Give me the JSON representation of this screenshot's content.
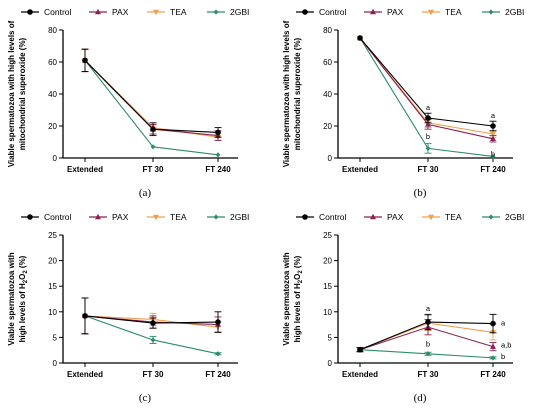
{
  "colors": {
    "Control": "#000000",
    "PAX": "#8b2252",
    "TEA": "#f0a050",
    "2GBI": "#2e8b6e"
  },
  "chart_data": [
    {
      "type": "line",
      "panel": "(a)",
      "ylabel_lines": [
        "Viable spermatozoa with high levels of",
        "mitochondrial superoxide (%)"
      ],
      "categories": [
        "Extended",
        "FT 30",
        "FT 240"
      ],
      "ylim": [
        0,
        80
      ],
      "yticks": [
        "0",
        "20",
        "40",
        "60",
        "80"
      ],
      "series": [
        {
          "name": "Control",
          "values": [
            61,
            18,
            16
          ],
          "err": [
            7,
            4,
            3
          ]
        },
        {
          "name": "PAX",
          "values": [
            61,
            18,
            14
          ],
          "err": [
            7,
            3,
            3
          ]
        },
        {
          "name": "TEA",
          "values": [
            61,
            19,
            13
          ],
          "err": [
            7,
            2,
            2
          ]
        },
        {
          "name": "2GBI",
          "values": [
            61,
            7,
            2
          ],
          "err": [
            7,
            0,
            0
          ]
        }
      ],
      "annotations": []
    },
    {
      "type": "line",
      "panel": "(b)",
      "ylabel_lines": [
        "Viable spermatozoa with high levels of",
        "mitochondrial superoxide (%)"
      ],
      "categories": [
        "Extended",
        "FT 30",
        "FT 240"
      ],
      "ylim": [
        0,
        80
      ],
      "yticks": [
        "0",
        "20",
        "40",
        "60",
        "80"
      ],
      "series": [
        {
          "name": "Control",
          "values": [
            75,
            25,
            20
          ],
          "err": [
            0,
            3,
            3
          ]
        },
        {
          "name": "PAX",
          "values": [
            75,
            21,
            12
          ],
          "err": [
            0,
            3,
            2
          ]
        },
        {
          "name": "TEA",
          "values": [
            75,
            22,
            15
          ],
          "err": [
            0,
            3,
            2
          ]
        },
        {
          "name": "2GBI",
          "values": [
            75,
            6,
            1
          ],
          "err": [
            0,
            3,
            0
          ]
        }
      ],
      "annotations": [
        {
          "text": "a",
          "cat": 1,
          "y": 30
        },
        {
          "text": "b",
          "cat": 1,
          "y": 12
        },
        {
          "text": "a",
          "cat": 2,
          "y": 25
        },
        {
          "text": "b",
          "cat": 2,
          "y": 1
        }
      ]
    },
    {
      "type": "line",
      "panel": "(c)",
      "ylabel_lines": [
        "Viable spermatozoa with",
        "high levels of H2O2 (%)"
      ],
      "categories": [
        "Extended",
        "FT 30",
        "FT 240"
      ],
      "ylim": [
        0,
        25
      ],
      "yticks": [
        "0",
        "5",
        "10",
        "15",
        "20",
        "25"
      ],
      "series": [
        {
          "name": "Control",
          "values": [
            9.2,
            7.8,
            8.0
          ],
          "err": [
            3.5,
            1.0,
            2.0
          ]
        },
        {
          "name": "PAX",
          "values": [
            9.2,
            8.0,
            7.5
          ],
          "err": [
            3.5,
            1.2,
            1.5
          ]
        },
        {
          "name": "TEA",
          "values": [
            9.2,
            8.5,
            7.0
          ],
          "err": [
            3.5,
            1.2,
            1.0
          ]
        },
        {
          "name": "2GBI",
          "values": [
            9.2,
            4.5,
            1.8
          ],
          "err": [
            3.5,
            0.7,
            0.2
          ]
        }
      ],
      "annotations": []
    },
    {
      "type": "line",
      "panel": "(d)",
      "ylabel_lines": [
        "Viable spermatozoa with",
        "high levels of H2O2 (%)"
      ],
      "categories": [
        "Extended",
        "FT 30",
        "FT 240"
      ],
      "ylim": [
        0,
        25
      ],
      "yticks": [
        "0",
        "5",
        "10",
        "15",
        "20",
        "25"
      ],
      "series": [
        {
          "name": "Control",
          "values": [
            2.6,
            8.0,
            7.7
          ],
          "err": [
            0.4,
            1.5,
            1.8
          ]
        },
        {
          "name": "PAX",
          "values": [
            2.6,
            7.0,
            3.2
          ],
          "err": [
            0.4,
            1.5,
            0.8
          ]
        },
        {
          "name": "TEA",
          "values": [
            2.6,
            7.8,
            6.0
          ],
          "err": [
            0.4,
            1.5,
            1.5
          ]
        },
        {
          "name": "2GBI",
          "values": [
            2.6,
            1.8,
            1.0
          ],
          "err": [
            0.4,
            0.3,
            0.2
          ]
        }
      ],
      "annotations": [
        {
          "text": "a",
          "cat": 1,
          "y": 10.2
        },
        {
          "text": "b",
          "cat": 1,
          "y": 3.2
        },
        {
          "text": "a",
          "cat": 2,
          "y": 7.3,
          "dx": 1
        },
        {
          "text": "a,b",
          "cat": 2,
          "y": 3.0,
          "dx": 1
        },
        {
          "text": "b",
          "cat": 2,
          "y": 0.8,
          "dx": 1
        }
      ]
    }
  ]
}
